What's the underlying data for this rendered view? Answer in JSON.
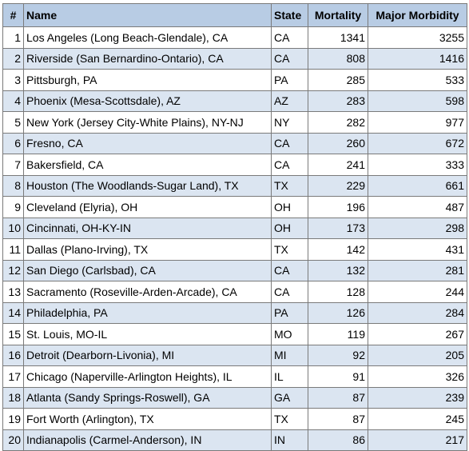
{
  "table": {
    "headers": {
      "num": "#",
      "name": "Name",
      "state": "State",
      "mortality": "Mortality",
      "morbidity": "Major Morbidity"
    },
    "rows": [
      {
        "num": "1",
        "name": "Los Angeles (Long Beach-Glendale), CA",
        "state": "CA",
        "mortality": "1341",
        "morbidity": "3255"
      },
      {
        "num": "2",
        "name": "Riverside (San Bernardino-Ontario), CA",
        "state": "CA",
        "mortality": "808",
        "morbidity": "1416"
      },
      {
        "num": "3",
        "name": "Pittsburgh, PA",
        "state": "PA",
        "mortality": "285",
        "morbidity": "533"
      },
      {
        "num": "4",
        "name": "Phoenix (Mesa-Scottsdale), AZ",
        "state": "AZ",
        "mortality": "283",
        "morbidity": "598"
      },
      {
        "num": "5",
        "name": "New York (Jersey City-White Plains), NY-NJ",
        "state": "NY",
        "mortality": "282",
        "morbidity": "977"
      },
      {
        "num": "6",
        "name": "Fresno, CA",
        "state": "CA",
        "mortality": "260",
        "morbidity": "672"
      },
      {
        "num": "7",
        "name": "Bakersfield, CA",
        "state": "CA",
        "mortality": "241",
        "morbidity": "333"
      },
      {
        "num": "8",
        "name": "Houston (The Woodlands-Sugar Land), TX",
        "state": "TX",
        "mortality": "229",
        "morbidity": "661"
      },
      {
        "num": "9",
        "name": "Cleveland (Elyria), OH",
        "state": "OH",
        "mortality": "196",
        "morbidity": "487"
      },
      {
        "num": "10",
        "name": "Cincinnati, OH-KY-IN",
        "state": "OH",
        "mortality": "173",
        "morbidity": "298"
      },
      {
        "num": "11",
        "name": "Dallas (Plano-Irving), TX",
        "state": "TX",
        "mortality": "142",
        "morbidity": "431"
      },
      {
        "num": "12",
        "name": "San Diego (Carlsbad), CA",
        "state": "CA",
        "mortality": "132",
        "morbidity": "281"
      },
      {
        "num": "13",
        "name": "Sacramento (Roseville-Arden-Arcade), CA",
        "state": "CA",
        "mortality": "128",
        "morbidity": "244"
      },
      {
        "num": "14",
        "name": "Philadelphia, PA",
        "state": "PA",
        "mortality": "126",
        "morbidity": "284"
      },
      {
        "num": "15",
        "name": "St. Louis, MO-IL",
        "state": "MO",
        "mortality": "119",
        "morbidity": "267"
      },
      {
        "num": "16",
        "name": "Detroit (Dearborn-Livonia), MI",
        "state": "MI",
        "mortality": "92",
        "morbidity": "205"
      },
      {
        "num": "17",
        "name": "Chicago (Naperville-Arlington Heights), IL",
        "state": "IL",
        "mortality": "91",
        "morbidity": "326"
      },
      {
        "num": "18",
        "name": "Atlanta (Sandy Springs-Roswell), GA",
        "state": "GA",
        "mortality": "87",
        "morbidity": "239"
      },
      {
        "num": "19",
        "name": "Fort Worth (Arlington), TX",
        "state": "TX",
        "mortality": "87",
        "morbidity": "245"
      },
      {
        "num": "20",
        "name": "Indianapolis (Carmel-Anderson), IN",
        "state": "IN",
        "mortality": "86",
        "morbidity": "217"
      }
    ]
  },
  "colors": {
    "header_bg": "#b8cce4",
    "alt_row_bg": "#dbe5f1",
    "border": "#7a7a7a"
  }
}
